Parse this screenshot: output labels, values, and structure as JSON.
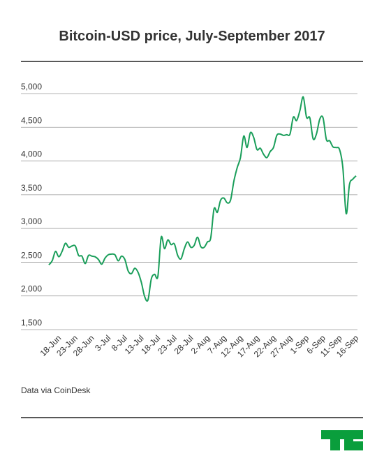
{
  "chart_data": {
    "type": "line",
    "title": "Bitcoin-USD price, July-September 2017",
    "source": "Data via CoinDesk",
    "categories": [
      null,
      null,
      "18-Jun",
      null,
      null,
      null,
      null,
      "23-Jun",
      null,
      null,
      null,
      null,
      "28-Jun",
      null,
      null,
      null,
      null,
      "3-Jul",
      null,
      null,
      null,
      null,
      "8-Jul",
      null,
      null,
      null,
      null,
      "13-Jul",
      null,
      null,
      null,
      null,
      "18-Jul",
      null,
      null,
      null,
      null,
      "23-Jul",
      null,
      null,
      null,
      null,
      "28-Jul",
      null,
      null,
      null,
      null,
      "2-Aug",
      null,
      null,
      null,
      null,
      "7-Aug",
      null,
      null,
      null,
      null,
      "12-Aug",
      null,
      null,
      null,
      null,
      "17-Aug",
      null,
      null,
      null,
      null,
      "22-Aug",
      null,
      null,
      null,
      null,
      "27-Aug",
      null,
      null,
      null,
      null,
      "1-Sep",
      null,
      null,
      null,
      null,
      "6-Sep",
      null,
      null,
      null,
      null,
      "11-Sep",
      null,
      null,
      null,
      null,
      "16-Sep",
      null
    ],
    "values": [
      2460,
      2520,
      2660,
      2580,
      2660,
      2780,
      2720,
      2740,
      2740,
      2600,
      2590,
      2480,
      2600,
      2590,
      2580,
      2540,
      2470,
      2560,
      2610,
      2620,
      2610,
      2520,
      2590,
      2540,
      2370,
      2330,
      2410,
      2350,
      2200,
      1990,
      1940,
      2250,
      2320,
      2290,
      2870,
      2700,
      2830,
      2760,
      2770,
      2600,
      2550,
      2700,
      2800,
      2720,
      2750,
      2870,
      2730,
      2720,
      2800,
      2860,
      3290,
      3240,
      3420,
      3450,
      3380,
      3420,
      3700,
      3900,
      4050,
      4370,
      4200,
      4420,
      4350,
      4170,
      4190,
      4100,
      4050,
      4140,
      4200,
      4380,
      4400,
      4380,
      4390,
      4400,
      4650,
      4600,
      4750,
      4950,
      4650,
      4640,
      4330,
      4400,
      4620,
      4640,
      4320,
      4300,
      4210,
      4200,
      4170,
      3900,
      3220,
      3650,
      3730,
      3780
    ],
    "color": "#1a9e5a",
    "ylim": [
      1500,
      5000
    ],
    "yticks": [
      {
        "value": 1500,
        "label": "1,500"
      },
      {
        "value": 2000,
        "label": "2,000"
      },
      {
        "value": 2500,
        "label": "2,500"
      },
      {
        "value": 3000,
        "label": "3,000"
      },
      {
        "value": 3500,
        "label": "3,500"
      },
      {
        "value": 4000,
        "label": "4,000"
      },
      {
        "value": 4500,
        "label": "4,500"
      },
      {
        "value": 5000,
        "label": "5,000"
      }
    ],
    "grid": true
  }
}
